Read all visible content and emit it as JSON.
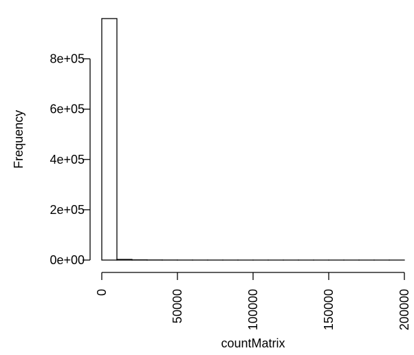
{
  "chart_data": {
    "type": "bar",
    "title": "",
    "xlabel": "countMatrix",
    "ylabel": "Frequency",
    "bins": [
      {
        "x0": 0,
        "x1": 10000,
        "count": 960000
      },
      {
        "x0": 10000,
        "x1": 20000,
        "count": 2500
      },
      {
        "x0": 20000,
        "x1": 30000,
        "count": 800
      },
      {
        "x0": 30000,
        "x1": 40000,
        "count": 400
      },
      {
        "x0": 40000,
        "x1": 50000,
        "count": 200
      },
      {
        "x0": 50000,
        "x1": 60000,
        "count": 100
      },
      {
        "x0": 60000,
        "x1": 70000,
        "count": 50
      },
      {
        "x0": 70000,
        "x1": 80000,
        "count": 30
      },
      {
        "x0": 80000,
        "x1": 90000,
        "count": 20
      },
      {
        "x0": 90000,
        "x1": 100000,
        "count": 15
      },
      {
        "x0": 100000,
        "x1": 110000,
        "count": 10
      },
      {
        "x0": 110000,
        "x1": 120000,
        "count": 8
      },
      {
        "x0": 120000,
        "x1": 130000,
        "count": 6
      },
      {
        "x0": 130000,
        "x1": 140000,
        "count": 5
      },
      {
        "x0": 140000,
        "x1": 150000,
        "count": 4
      },
      {
        "x0": 150000,
        "x1": 160000,
        "count": 3
      },
      {
        "x0": 160000,
        "x1": 170000,
        "count": 3
      },
      {
        "x0": 170000,
        "x1": 180000,
        "count": 2
      },
      {
        "x0": 180000,
        "x1": 190000,
        "count": 2
      },
      {
        "x0": 190000,
        "x1": 200000,
        "count": 1
      }
    ],
    "xlim": [
      0,
      200000
    ],
    "ylim": [
      0,
      960000
    ],
    "x_ticks": [
      0,
      50000,
      100000,
      150000,
      200000
    ],
    "x_tick_labels": [
      "0",
      "50000",
      "100000",
      "150000",
      "200000"
    ],
    "y_ticks": [
      0,
      200000,
      400000,
      600000,
      800000
    ],
    "y_tick_labels": [
      "0e+00",
      "2e+05",
      "4e+05",
      "6e+05",
      "8e+05"
    ],
    "grid": false,
    "bar_fill": "#ffffff",
    "bar_stroke": "#000000"
  }
}
